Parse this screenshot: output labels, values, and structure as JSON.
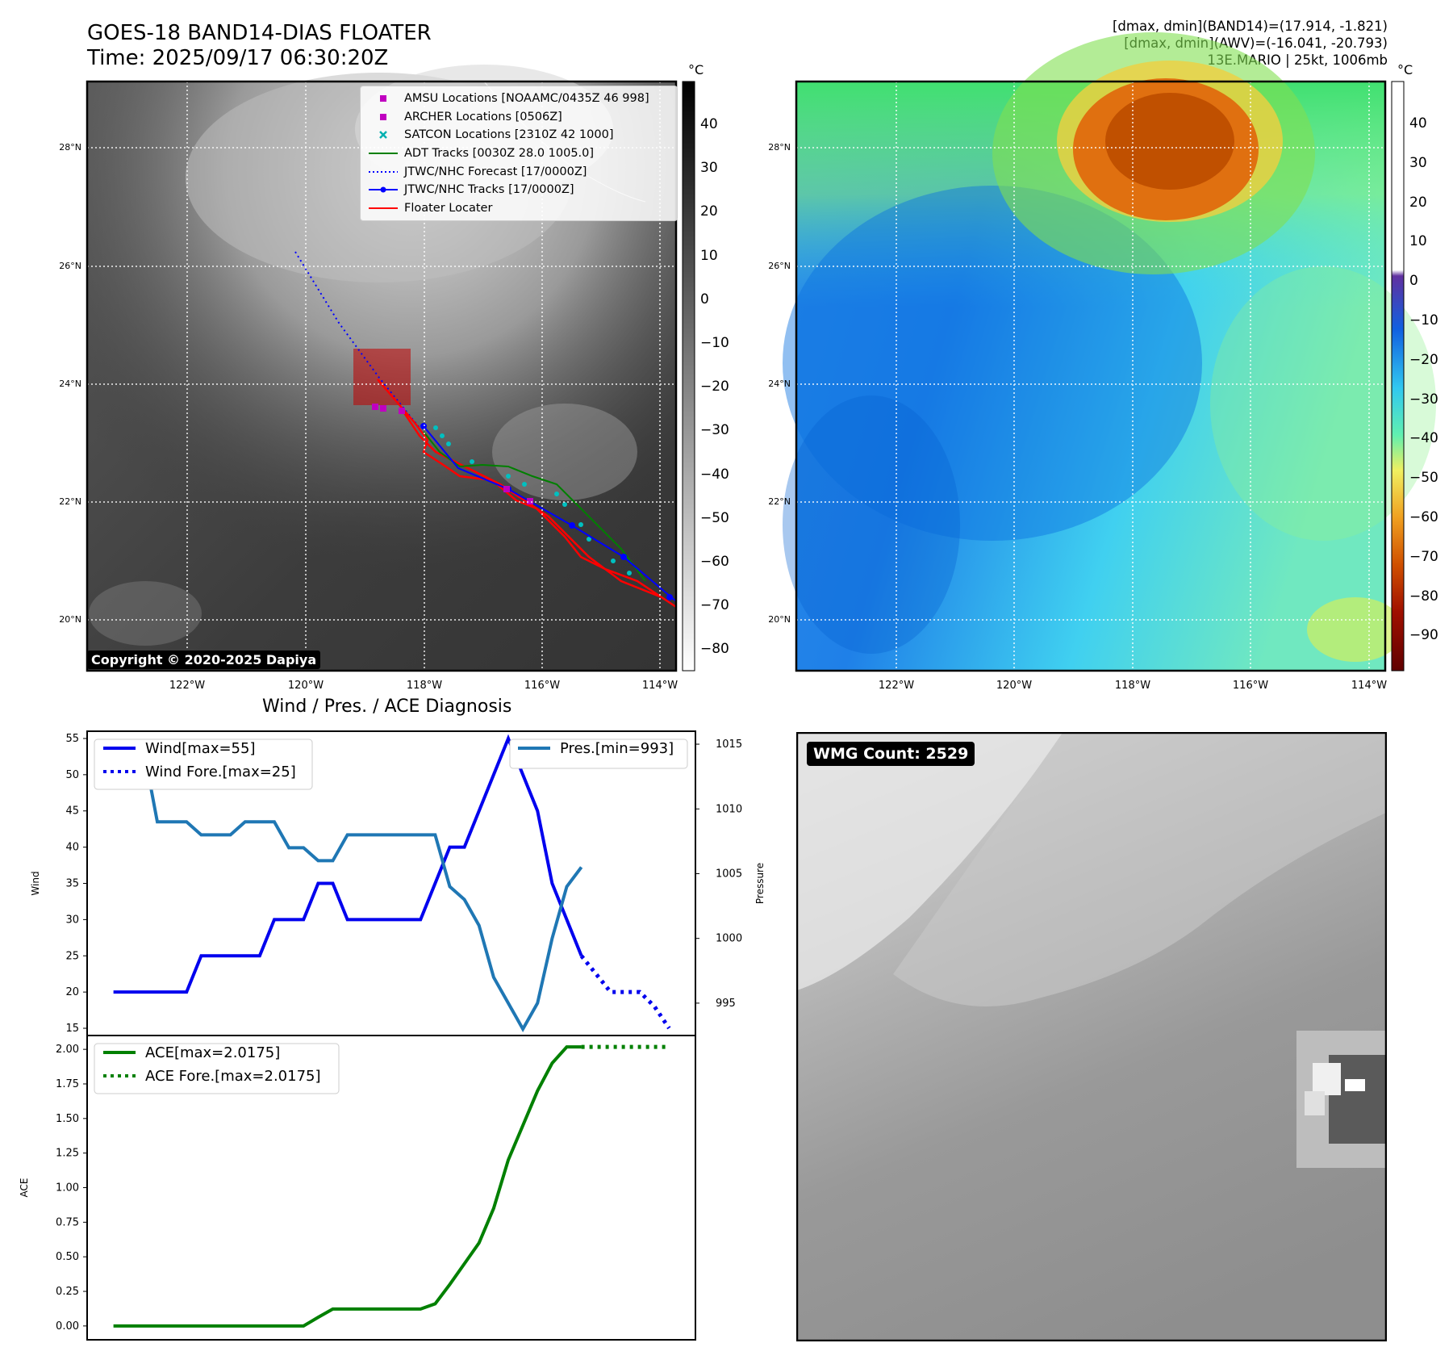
{
  "header": {
    "title_line1": "GOES-18 BAND14-DIAS FLOATER",
    "title_line2": "Time: 2025/09/17 06:30:20Z",
    "info_line1": "[dmax, dmin](BAND14)=(17.914, -1.821)",
    "info_line2": "[dmax, dmin](AWV)=(-16.041, -20.793)",
    "info_line3": "13E.MARIO | 25kt, 1006mb"
  },
  "map": {
    "lon_ticks": [
      "122°W",
      "120°W",
      "118°W",
      "116°W",
      "114°W"
    ],
    "lat_ticks": [
      "28°N",
      "26°N",
      "24°N",
      "22°N",
      "20°N"
    ],
    "copyright": "Copyright © 2020-2025 Dapiya",
    "colorbar_unit": "°C",
    "ir_colorbar_ticks": [
      "40",
      "30",
      "20",
      "10",
      "0",
      "−10",
      "−20",
      "−30",
      "−40",
      "−50",
      "−60",
      "−70",
      "−80"
    ],
    "wv_colorbar_ticks": [
      "40",
      "30",
      "20",
      "10",
      "0",
      "−10",
      "−20",
      "−30",
      "−40",
      "−50",
      "−60",
      "−70",
      "−80",
      "−90"
    ],
    "legend": [
      {
        "label": "AMSU Locations [NOAAMC/0435Z 46 998]",
        "color": "#c000c0",
        "marker": "square"
      },
      {
        "label": "ARCHER Locations [0506Z]",
        "color": "#c000c0",
        "marker": "square"
      },
      {
        "label": "SATCON Locations [2310Z 42 1000]",
        "color": "#00b0b0",
        "marker": "x"
      },
      {
        "label": "ADT Tracks [0030Z 28.0 1005.0]",
        "color": "#008000",
        "marker": "line"
      },
      {
        "label": "JTWC/NHC Forecast [17/0000Z]",
        "color": "#0000ff",
        "marker": "dotted"
      },
      {
        "label": "JTWC/NHC Tracks [17/0000Z]",
        "color": "#0000ff",
        "marker": "line-dot"
      },
      {
        "label": "Floater Locater",
        "color": "#ff0000",
        "marker": "line"
      }
    ]
  },
  "wmg": {
    "badge": "WMG Count: 2529"
  },
  "chart_data": [
    {
      "type": "line",
      "title": "Wind / Pres. / ACE Diagnosis",
      "ylabel": "Wind",
      "ylabel_right": "Pressure",
      "ylim": [
        14,
        56
      ],
      "ylim_right": [
        992.5,
        1016
      ],
      "yticks": [
        15,
        20,
        25,
        30,
        35,
        40,
        45,
        50,
        55
      ],
      "yticks_right": [
        995,
        1000,
        1005,
        1010,
        1015
      ],
      "x": [
        0,
        1,
        2,
        3,
        4,
        5,
        6,
        7,
        8,
        9,
        10,
        11,
        12,
        13,
        14,
        15,
        16,
        17,
        18,
        19,
        20,
        21,
        22,
        23,
        24,
        25,
        26,
        27,
        28,
        29,
        30,
        31,
        32,
        33,
        34,
        35,
        36,
        37,
        38
      ],
      "series": [
        {
          "name": "Wind[max=55]",
          "color": "#0000ee",
          "style": "solid",
          "x": [
            0,
            1,
            2,
            3,
            4,
            5,
            6,
            7,
            8,
            9,
            10,
            11,
            12,
            13,
            14,
            15,
            16,
            17,
            18,
            19,
            20,
            21,
            22,
            23,
            24,
            25,
            26,
            27,
            28,
            29,
            30,
            31,
            32
          ],
          "values": [
            20,
            20,
            20,
            20,
            20,
            20,
            25,
            25,
            25,
            25,
            25,
            30,
            30,
            30,
            35,
            35,
            30,
            30,
            30,
            30,
            30,
            30,
            35,
            40,
            40,
            45,
            50,
            55,
            50,
            45,
            35,
            30,
            25
          ]
        },
        {
          "name": "Wind Fore.[max=25]",
          "color": "#0000ee",
          "style": "dotted",
          "x": [
            32,
            33,
            34,
            35,
            36,
            37,
            38
          ],
          "values": [
            25,
            22.5,
            20,
            20,
            20,
            18,
            15
          ]
        },
        {
          "name": "Pres.[min=993]",
          "color": "#1f77b4",
          "style": "solid",
          "axis": "right",
          "x": [
            0,
            1,
            2,
            3,
            4,
            5,
            6,
            7,
            8,
            9,
            10,
            11,
            12,
            13,
            14,
            15,
            16,
            17,
            18,
            19,
            20,
            21,
            22,
            23,
            24,
            25,
            26,
            27,
            28,
            29,
            30,
            31,
            32
          ],
          "values": [
            1015,
            1015,
            1015,
            1009,
            1009,
            1009,
            1008,
            1008,
            1008,
            1009,
            1009,
            1009,
            1007,
            1007,
            1006,
            1006,
            1008,
            1008,
            1008,
            1008,
            1008,
            1008,
            1008,
            1004,
            1003,
            1001,
            997,
            995,
            993,
            995,
            1000,
            1004,
            1005.5
          ]
        }
      ]
    },
    {
      "type": "line",
      "ylabel": "ACE",
      "ylim": [
        -0.1,
        2.1
      ],
      "yticks": [
        "0.00",
        "0.25",
        "0.50",
        "0.75",
        "1.00",
        "1.25",
        "1.50",
        "1.75",
        "2.00"
      ],
      "series": [
        {
          "name": "ACE[max=2.0175]",
          "color": "#008000",
          "style": "solid",
          "x": [
            0,
            1,
            2,
            3,
            4,
            5,
            6,
            7,
            8,
            9,
            10,
            11,
            12,
            13,
            14,
            15,
            16,
            17,
            18,
            19,
            20,
            21,
            22,
            23,
            24,
            25,
            26,
            27,
            28,
            29,
            30,
            31,
            32
          ],
          "values": [
            0,
            0,
            0,
            0,
            0,
            0,
            0,
            0,
            0,
            0,
            0,
            0,
            0,
            0,
            0.0625,
            0.1225,
            0.1225,
            0.1225,
            0.1225,
            0.1225,
            0.1225,
            0.1225,
            0.16,
            0.3,
            0.45,
            0.6,
            0.85,
            1.2,
            1.45,
            1.7,
            1.9,
            2.0175,
            2.0175
          ]
        },
        {
          "name": "ACE Fore.[max=2.0175]",
          "color": "#008000",
          "style": "dotted",
          "x": [
            32,
            33,
            34,
            35,
            36,
            37,
            38
          ],
          "values": [
            2.0175,
            2.0175,
            2.0175,
            2.0175,
            2.0175,
            2.0175,
            2.0175
          ]
        }
      ]
    }
  ]
}
